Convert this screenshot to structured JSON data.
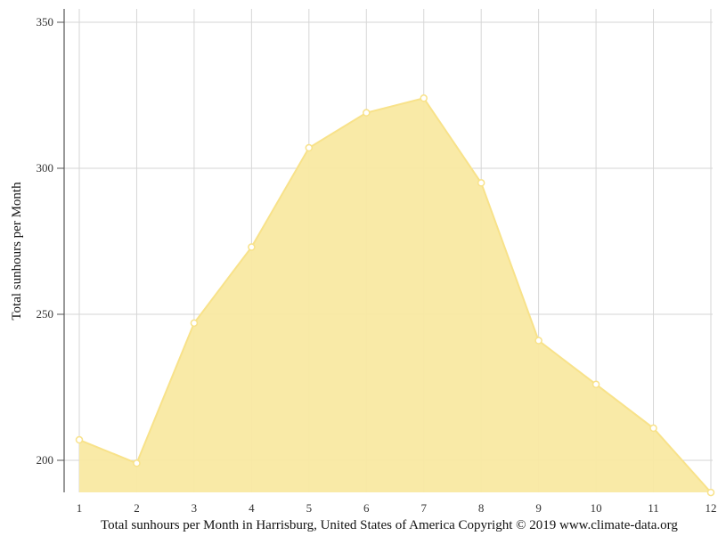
{
  "chart_data": {
    "type": "area",
    "title": "",
    "xlabel": "",
    "ylabel": "Total sunhours per Month",
    "x": [
      1,
      2,
      3,
      4,
      5,
      6,
      7,
      8,
      9,
      10,
      11,
      12
    ],
    "series": [
      {
        "values": [
          207,
          199,
          247,
          273,
          307,
          319,
          324,
          295,
          241,
          226,
          211,
          189
        ]
      }
    ],
    "ylim": [
      189,
      355
    ],
    "yticks": [
      200,
      250,
      300,
      350
    ],
    "grid": true,
    "colors": {
      "fill": "#f9e9a2",
      "line": "#f8e28a",
      "marker_fill": "#ffffff",
      "grid": "#d6d6d6",
      "axis": "#555555"
    }
  },
  "caption": "Total sunhours per Month in Harrisburg, United States of America Copyright © 2019 www.climate-data.org"
}
